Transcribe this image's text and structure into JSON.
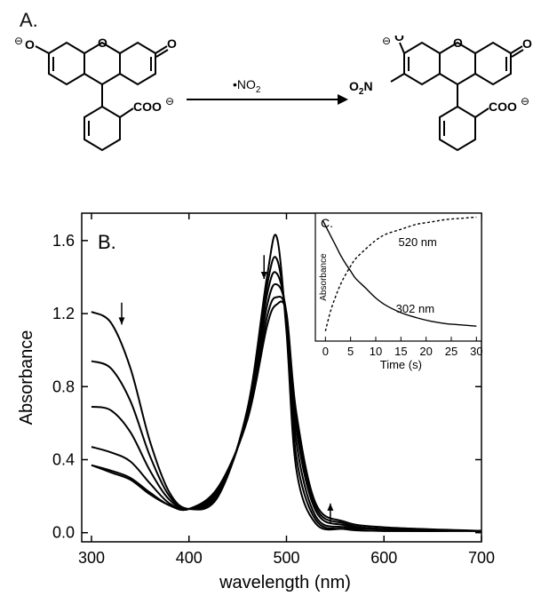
{
  "panel_a": {
    "label": "A.",
    "reagent": "•NO",
    "reagent_sub": "2",
    "reactant": {
      "o_minus": "O",
      "o_charge": "⊖",
      "o_keto": "O",
      "coo": "COO",
      "coo_charge": "⊖"
    },
    "product": {
      "o_minus": "O",
      "o_charge": "⊖",
      "o_keto": "O",
      "no2": "O",
      "no2_sub": "2",
      "no2_n": "N",
      "coo": "COO",
      "coo_charge": "⊖"
    }
  },
  "chart_data": [
    {
      "type": "line",
      "panel_label": "B.",
      "xlabel": "wavelength (nm)",
      "ylabel": "Absorbance",
      "xlim": [
        290,
        700
      ],
      "ylim": [
        -0.05,
        1.75
      ],
      "x_ticks": [
        "300",
        "400",
        "500",
        "600",
        "700"
      ],
      "y_ticks": [
        "0.0",
        "0.4",
        "0.8",
        "1.2",
        "1.6"
      ],
      "x_tick_values": [
        300,
        400,
        500,
        600,
        700
      ],
      "y_tick_values": [
        0.0,
        0.4,
        0.8,
        1.2,
        1.6
      ],
      "annotations": [
        "↓ at ~330 nm (absorbance decreases)",
        "↓ at ~478 nm",
        "↑ at ~545 nm"
      ],
      "series": [
        {
          "x": [
            300,
            320,
            340,
            360,
            380,
            400,
            430,
            460,
            480,
            490,
            500,
            510,
            530,
            560,
            600,
            700
          ],
          "values": [
            1.21,
            1.15,
            0.9,
            0.5,
            0.22,
            0.13,
            0.2,
            0.68,
            1.4,
            1.62,
            1.1,
            0.35,
            0.05,
            0.02,
            0.01,
            0.01
          ]
        },
        {
          "x": [
            300,
            320,
            340,
            360,
            380,
            400,
            430,
            460,
            480,
            490,
            500,
            510,
            530,
            560,
            600,
            700
          ],
          "values": [
            0.94,
            0.9,
            0.72,
            0.42,
            0.2,
            0.13,
            0.21,
            0.66,
            1.35,
            1.5,
            1.15,
            0.42,
            0.07,
            0.02,
            0.01,
            0.01
          ]
        },
        {
          "x": [
            300,
            320,
            340,
            360,
            380,
            400,
            430,
            460,
            480,
            490,
            500,
            510,
            530,
            560,
            600,
            700
          ],
          "values": [
            0.69,
            0.67,
            0.55,
            0.34,
            0.18,
            0.13,
            0.22,
            0.65,
            1.3,
            1.42,
            1.18,
            0.5,
            0.09,
            0.03,
            0.02,
            0.01
          ]
        },
        {
          "x": [
            300,
            320,
            340,
            360,
            380,
            400,
            430,
            460,
            480,
            490,
            500,
            510,
            530,
            560,
            600,
            700
          ],
          "values": [
            0.47,
            0.44,
            0.39,
            0.27,
            0.16,
            0.13,
            0.23,
            0.64,
            1.24,
            1.36,
            1.2,
            0.57,
            0.12,
            0.04,
            0.02,
            0.01
          ]
        },
        {
          "x": [
            300,
            320,
            340,
            360,
            380,
            400,
            430,
            460,
            480,
            490,
            500,
            510,
            530,
            560,
            600,
            700
          ],
          "values": [
            0.37,
            0.34,
            0.3,
            0.22,
            0.15,
            0.13,
            0.24,
            0.63,
            1.18,
            1.29,
            1.2,
            0.62,
            0.14,
            0.05,
            0.02,
            0.01
          ]
        },
        {
          "x": [
            300,
            320,
            340,
            360,
            380,
            400,
            430,
            460,
            480,
            490,
            500,
            510,
            530,
            560,
            600,
            700
          ],
          "values": [
            0.37,
            0.33,
            0.29,
            0.21,
            0.15,
            0.13,
            0.25,
            0.62,
            1.13,
            1.25,
            1.2,
            0.66,
            0.16,
            0.06,
            0.03,
            0.01
          ]
        }
      ]
    },
    {
      "type": "line",
      "panel_label": "C.",
      "xlabel": "Time (s)",
      "ylabel": "Absorbance",
      "xlim": [
        -2,
        31
      ],
      "ylim": [
        0,
        1
      ],
      "x_ticks": [
        "0",
        "5",
        "10",
        "15",
        "20",
        "25",
        "30"
      ],
      "x_tick_values": [
        0,
        5,
        10,
        15,
        20,
        25,
        30
      ],
      "series": [
        {
          "name": "520 nm",
          "style": "dashed",
          "x": [
            0,
            1,
            2,
            3,
            4,
            5,
            6,
            8,
            10,
            12,
            15,
            18,
            21,
            24,
            27,
            30
          ],
          "values": [
            0.06,
            0.22,
            0.34,
            0.44,
            0.52,
            0.59,
            0.65,
            0.73,
            0.8,
            0.85,
            0.89,
            0.93,
            0.95,
            0.97,
            0.98,
            0.99
          ]
        },
        {
          "name": "302 nm",
          "style": "solid",
          "x": [
            -0.5,
            0,
            1,
            2,
            3,
            4,
            5,
            6,
            8,
            10,
            12,
            15,
            18,
            21,
            24,
            27,
            30
          ],
          "values": [
            0.96,
            0.92,
            0.84,
            0.76,
            0.68,
            0.61,
            0.55,
            0.49,
            0.41,
            0.33,
            0.27,
            0.21,
            0.17,
            0.14,
            0.12,
            0.11,
            0.1
          ]
        }
      ],
      "series_labels": [
        "520 nm",
        "302 nm"
      ]
    }
  ]
}
